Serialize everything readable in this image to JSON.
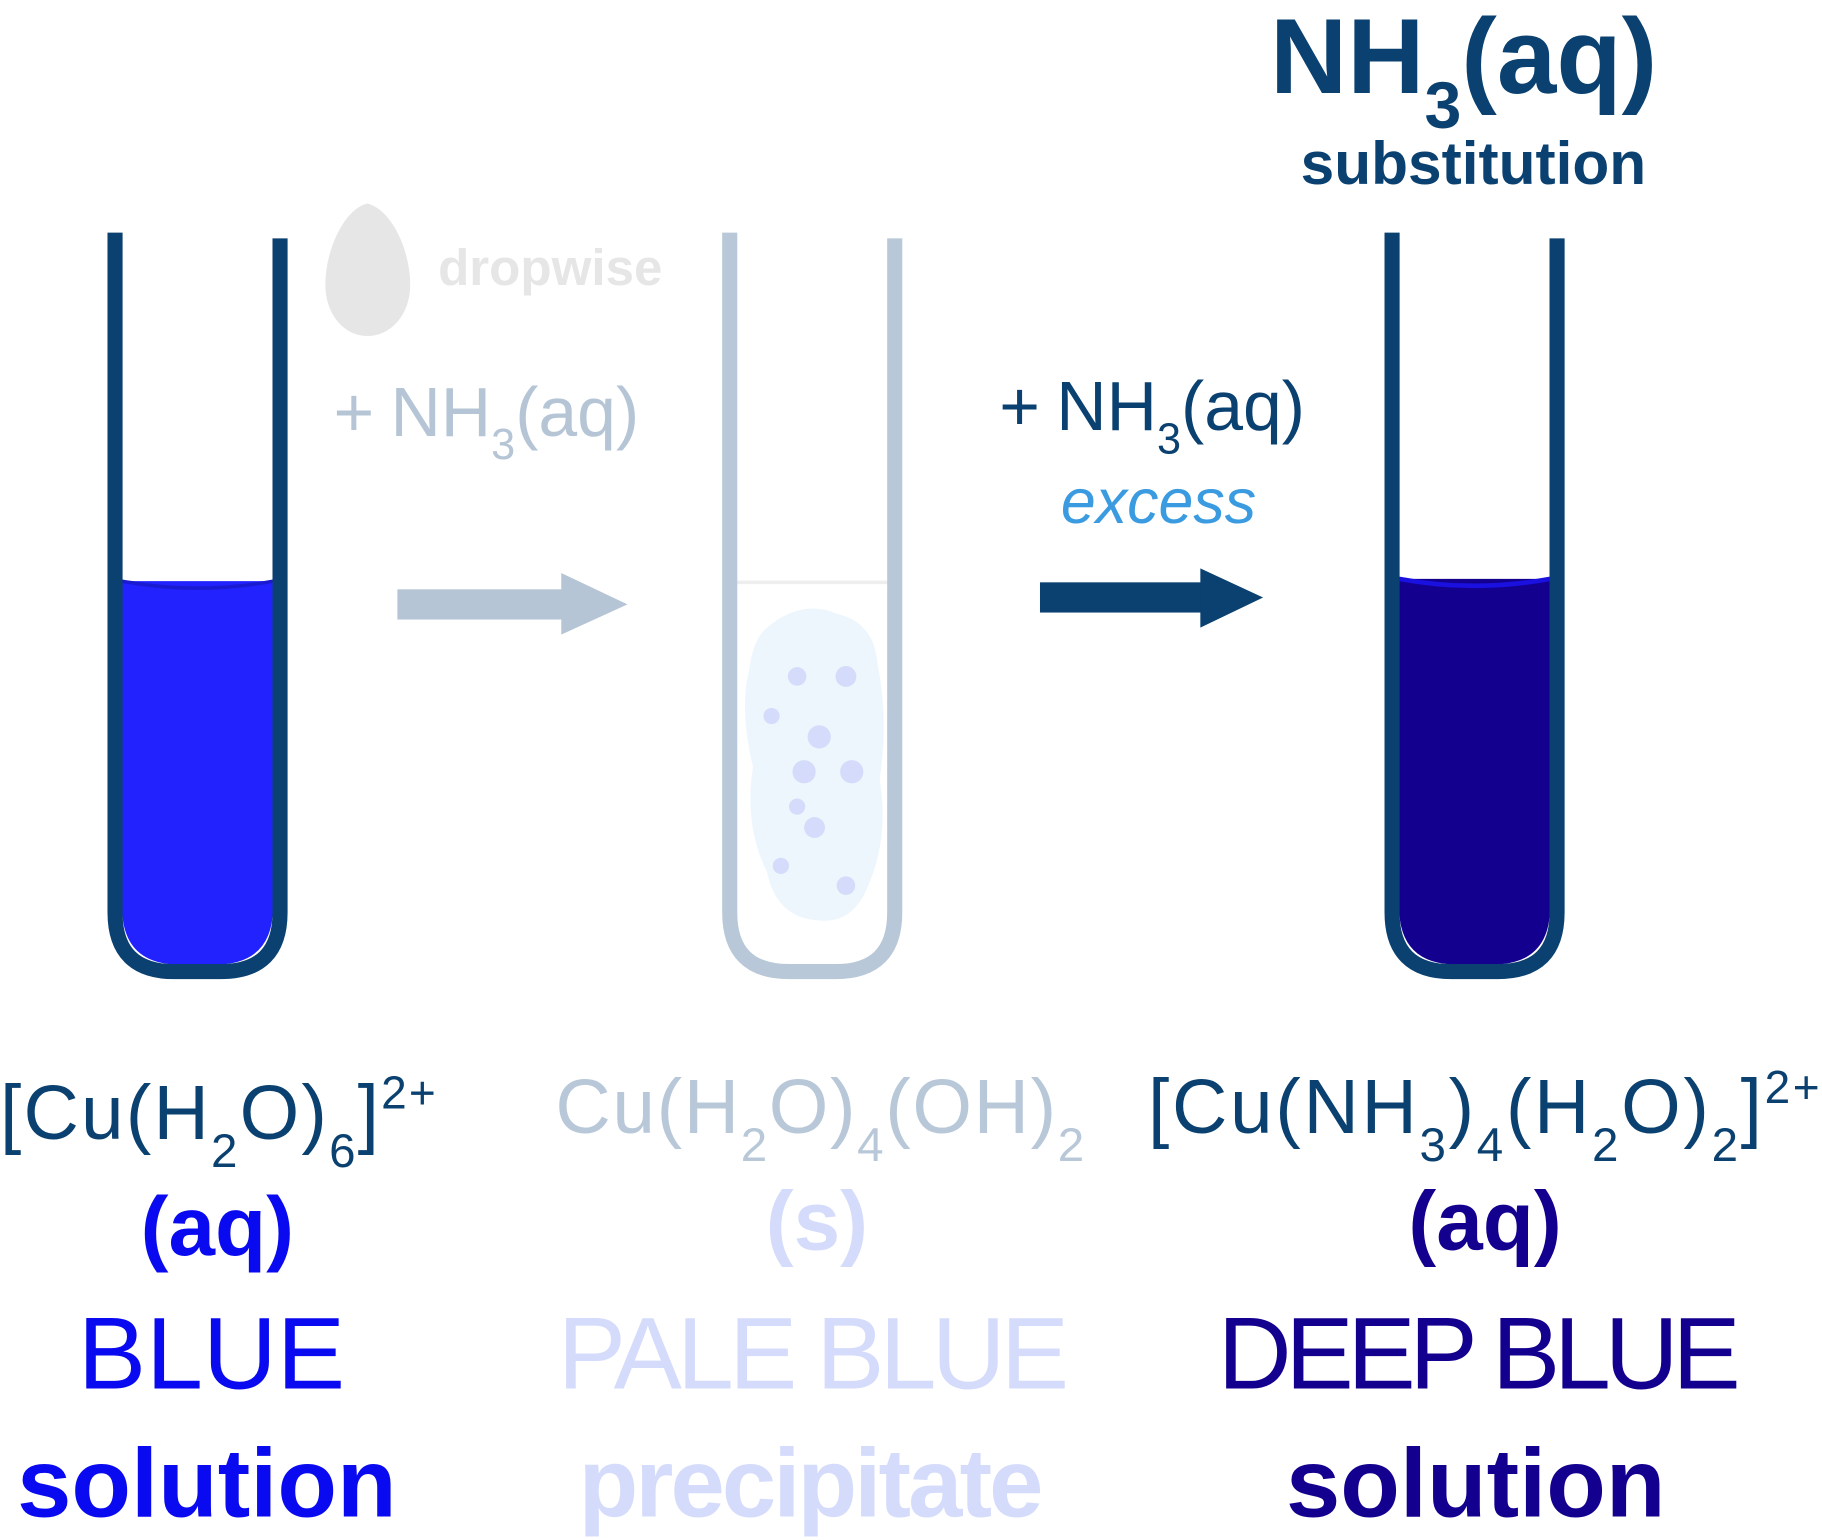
{
  "colors": {
    "navy": "#0a4170",
    "blue": "#2222ff",
    "blue_text": "#0a0af0",
    "pale_tube": "#b8c8d8",
    "pale_text": "#d5dcfb",
    "deep_blue": "#14008e",
    "excess": "#3b9be0",
    "dropwise": "#e6e6e6",
    "precipitate": "#eef6fd"
  },
  "header": {
    "reagent": {
      "main": "NH",
      "sub": "3",
      "tail": "(aq)"
    },
    "reaction_type": "substitution"
  },
  "step1": {
    "drop_label": "dropwise",
    "plus": "+",
    "reagent": {
      "main": "NH",
      "sub": "3",
      "tail": "(aq)"
    }
  },
  "step2": {
    "plus": "+",
    "reagent": {
      "main": "NH",
      "sub": "3",
      "tail": "(aq)"
    },
    "condition": "excess"
  },
  "tubes": [
    {
      "formula": [
        "[Cu(H",
        "2",
        "O)",
        "6",
        "]",
        "2+"
      ],
      "state": "(aq)",
      "color_name": "BLUE",
      "description": "solution"
    },
    {
      "formula": [
        "Cu(H",
        "2",
        "O)",
        "4",
        "(OH)",
        "2"
      ],
      "state": "(s)",
      "color_name": "PALE BLUE",
      "description": "precipitate"
    },
    {
      "formula": [
        "[Cu(NH",
        "3",
        ")",
        "4",
        "(H",
        "2",
        "O)",
        "2",
        "]",
        "2+"
      ],
      "state": "(aq)",
      "color_name": "DEEP BLUE",
      "description": "solution"
    }
  ]
}
